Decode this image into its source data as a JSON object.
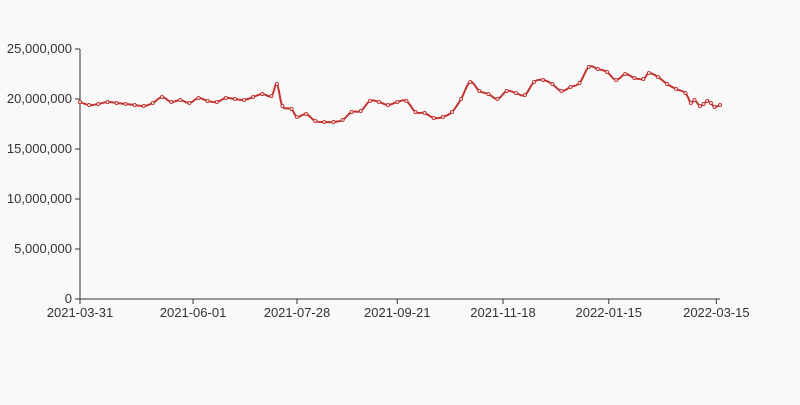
{
  "chart_data": {
    "type": "line",
    "title": "",
    "xlabel": "",
    "ylabel": "",
    "ylim": [
      0,
      25000000
    ],
    "yticks": [
      {
        "value": 0,
        "label": "0"
      },
      {
        "value": 5000000,
        "label": "5,000,000"
      },
      {
        "value": 10000000,
        "label": "10,000,000"
      },
      {
        "value": 15000000,
        "label": "15,000,000"
      },
      {
        "value": 20000000,
        "label": "20,000,000"
      },
      {
        "value": 25000000,
        "label": "25,000,000"
      }
    ],
    "xlim": [
      "2021-03-31",
      "2022-03-17"
    ],
    "xticks": [
      "2021-03-31",
      "2021-06-01",
      "2021-07-28",
      "2021-09-21",
      "2021-11-18",
      "2022-01-15",
      "2022-03-15"
    ],
    "grid": false,
    "series_color": "#c23531",
    "series": [
      {
        "values": [
          [
            "2021-03-31",
            19700000
          ],
          [
            "2021-04-05",
            19400000
          ],
          [
            "2021-04-10",
            19500000
          ],
          [
            "2021-04-15",
            19700000
          ],
          [
            "2021-04-20",
            19600000
          ],
          [
            "2021-04-25",
            19500000
          ],
          [
            "2021-04-30",
            19400000
          ],
          [
            "2021-05-05",
            19300000
          ],
          [
            "2021-05-10",
            19600000
          ],
          [
            "2021-05-15",
            20200000
          ],
          [
            "2021-05-20",
            19700000
          ],
          [
            "2021-05-25",
            19900000
          ],
          [
            "2021-05-30",
            19600000
          ],
          [
            "2021-06-04",
            20100000
          ],
          [
            "2021-06-09",
            19800000
          ],
          [
            "2021-06-14",
            19700000
          ],
          [
            "2021-06-19",
            20100000
          ],
          [
            "2021-06-24",
            20000000
          ],
          [
            "2021-06-29",
            19900000
          ],
          [
            "2021-07-04",
            20200000
          ],
          [
            "2021-07-09",
            20500000
          ],
          [
            "2021-07-14",
            20300000
          ],
          [
            "2021-07-17",
            21500000
          ],
          [
            "2021-07-20",
            19300000
          ],
          [
            "2021-07-25",
            19000000
          ],
          [
            "2021-07-28",
            18200000
          ],
          [
            "2021-08-02",
            18500000
          ],
          [
            "2021-08-07",
            17800000
          ],
          [
            "2021-08-12",
            17700000
          ],
          [
            "2021-08-17",
            17700000
          ],
          [
            "2021-08-22",
            17900000
          ],
          [
            "2021-08-27",
            18700000
          ],
          [
            "2021-09-01",
            18800000
          ],
          [
            "2021-09-06",
            19800000
          ],
          [
            "2021-09-11",
            19700000
          ],
          [
            "2021-09-16",
            19400000
          ],
          [
            "2021-09-21",
            19700000
          ],
          [
            "2021-09-26",
            19800000
          ],
          [
            "2021-10-01",
            18700000
          ],
          [
            "2021-10-06",
            18600000
          ],
          [
            "2021-10-11",
            18100000
          ],
          [
            "2021-10-16",
            18200000
          ],
          [
            "2021-10-21",
            18700000
          ],
          [
            "2021-10-26",
            20000000
          ],
          [
            "2021-10-31",
            21700000
          ],
          [
            "2021-11-05",
            20800000
          ],
          [
            "2021-11-10",
            20500000
          ],
          [
            "2021-11-15",
            20000000
          ],
          [
            "2021-11-20",
            20800000
          ],
          [
            "2021-11-25",
            20600000
          ],
          [
            "2021-11-30",
            20400000
          ],
          [
            "2021-12-05",
            21700000
          ],
          [
            "2021-12-10",
            21900000
          ],
          [
            "2021-12-15",
            21500000
          ],
          [
            "2021-12-20",
            20800000
          ],
          [
            "2021-12-25",
            21200000
          ],
          [
            "2021-12-30",
            21600000
          ],
          [
            "2022-01-04",
            23200000
          ],
          [
            "2022-01-09",
            23000000
          ],
          [
            "2022-01-14",
            22700000
          ],
          [
            "2022-01-19",
            21900000
          ],
          [
            "2022-01-24",
            22500000
          ],
          [
            "2022-01-29",
            22100000
          ],
          [
            "2022-02-03",
            22000000
          ],
          [
            "2022-02-06",
            22600000
          ],
          [
            "2022-02-11",
            22200000
          ],
          [
            "2022-02-16",
            21500000
          ],
          [
            "2022-02-21",
            21000000
          ],
          [
            "2022-02-26",
            20600000
          ],
          [
            "2022-03-01",
            19600000
          ],
          [
            "2022-03-03",
            19900000
          ],
          [
            "2022-03-06",
            19300000
          ],
          [
            "2022-03-08",
            19500000
          ],
          [
            "2022-03-10",
            19800000
          ],
          [
            "2022-03-12",
            19600000
          ],
          [
            "2022-03-14",
            19200000
          ],
          [
            "2022-03-17",
            19400000
          ]
        ]
      }
    ]
  }
}
